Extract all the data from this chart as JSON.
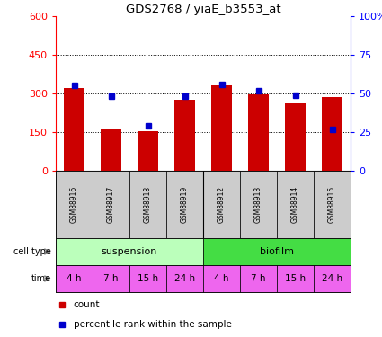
{
  "title": "GDS2768 / yiaE_b3553_at",
  "samples": [
    "GSM88916",
    "GSM88917",
    "GSM88918",
    "GSM88919",
    "GSM88912",
    "GSM88913",
    "GSM88914",
    "GSM88915"
  ],
  "counts": [
    320,
    162,
    155,
    275,
    330,
    297,
    262,
    285
  ],
  "percentiles": [
    55,
    48,
    29,
    48,
    56,
    52,
    49,
    27
  ],
  "ylim_left": [
    0,
    600
  ],
  "ylim_right": [
    0,
    100
  ],
  "yticks_left": [
    0,
    150,
    300,
    450,
    600
  ],
  "yticks_right": [
    0,
    25,
    50,
    75,
    100
  ],
  "bar_color": "#cc0000",
  "dot_color": "#0000cc",
  "cell_type_colors": [
    "#bbffbb",
    "#44dd44"
  ],
  "time_color": "#ee66ee",
  "header_bg": "#cccccc",
  "legend_count_color": "#cc0000",
  "legend_dot_color": "#0000cc",
  "legend_count_label": "count",
  "legend_dot_label": "percentile rank within the sample",
  "samples_suspension": [
    0,
    1,
    2,
    3
  ],
  "samples_biofilm": [
    4,
    5,
    6,
    7
  ],
  "time_labels": [
    "4 h",
    "7 h",
    "15 h",
    "24 h",
    "4 h",
    "7 h",
    "15 h",
    "24 h"
  ]
}
